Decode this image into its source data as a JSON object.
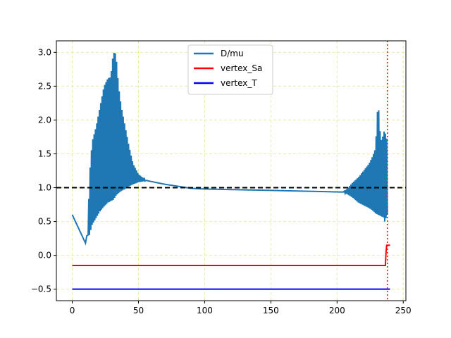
{
  "chart_data": {
    "type": "line",
    "title": "",
    "xlabel": "",
    "ylabel": "",
    "xlim": [
      -12,
      252
    ],
    "ylim": [
      -0.67,
      3.17
    ],
    "xticks": [
      0,
      50,
      100,
      150,
      200,
      250
    ],
    "xtick_labels": [
      "0",
      "50",
      "100",
      "150",
      "200",
      "250"
    ],
    "yticks": [
      -0.5,
      0.0,
      0.5,
      1.0,
      1.5,
      2.0,
      2.5,
      3.0
    ],
    "ytick_labels": [
      "−0.5",
      "0.0",
      "0.5",
      "1.0",
      "1.5",
      "2.0",
      "2.5",
      "3.0"
    ],
    "grid": true,
    "grid_color": "#e8eda0",
    "legend_position": "upper-center",
    "series": [
      {
        "name": "D/mu",
        "color": "#1f77b4",
        "envelope_upper": [
          [
            0,
            0.6
          ],
          [
            10,
            0.18
          ],
          [
            12,
            0.5
          ],
          [
            13,
            1.17
          ],
          [
            15,
            1.68
          ],
          [
            18,
            1.9
          ],
          [
            21,
            2.2
          ],
          [
            24,
            2.5
          ],
          [
            27,
            2.62
          ],
          [
            29,
            2.63
          ],
          [
            31,
            3.0
          ],
          [
            33,
            2.98
          ],
          [
            35,
            2.5
          ],
          [
            37,
            2.2
          ],
          [
            40,
            1.9
          ],
          [
            43,
            1.6
          ],
          [
            46,
            1.35
          ],
          [
            50,
            1.2
          ],
          [
            55,
            1.12
          ],
          [
            60,
            1.09
          ],
          [
            70,
            1.05
          ],
          [
            80,
            1.02
          ],
          [
            90,
            0.99
          ],
          [
            100,
            0.98
          ],
          [
            150,
            0.96
          ],
          [
            205,
            0.94
          ],
          [
            208,
            0.99
          ],
          [
            212,
            1.08
          ],
          [
            216,
            1.15
          ],
          [
            220,
            1.25
          ],
          [
            224,
            1.35
          ],
          [
            227,
            1.47
          ],
          [
            229,
            1.58
          ],
          [
            231,
            2.3
          ],
          [
            233,
            1.68
          ],
          [
            235,
            1.78
          ],
          [
            236,
            1.88
          ],
          [
            237,
            1.72
          ],
          [
            238,
            1.73
          ]
        ],
        "envelope_lower": [
          [
            0,
            0.6
          ],
          [
            10,
            0.18
          ],
          [
            12,
            0.3
          ],
          [
            13,
            0.3
          ],
          [
            15,
            0.45
          ],
          [
            18,
            0.55
          ],
          [
            21,
            0.65
          ],
          [
            24,
            0.72
          ],
          [
            27,
            0.78
          ],
          [
            29,
            0.8
          ],
          [
            31,
            0.82
          ],
          [
            33,
            0.88
          ],
          [
            35,
            0.92
          ],
          [
            37,
            0.95
          ],
          [
            40,
            0.98
          ],
          [
            43,
            1.02
          ],
          [
            46,
            1.05
          ],
          [
            50,
            1.08
          ],
          [
            55,
            1.1
          ],
          [
            60,
            1.09
          ],
          [
            70,
            1.05
          ],
          [
            80,
            1.02
          ],
          [
            90,
            0.99
          ],
          [
            100,
            0.98
          ],
          [
            150,
            0.96
          ],
          [
            205,
            0.93
          ],
          [
            208,
            0.9
          ],
          [
            212,
            0.85
          ],
          [
            216,
            0.78
          ],
          [
            220,
            0.74
          ],
          [
            224,
            0.7
          ],
          [
            227,
            0.66
          ],
          [
            229,
            0.62
          ],
          [
            231,
            0.6
          ],
          [
            233,
            0.58
          ],
          [
            235,
            0.56
          ],
          [
            236,
            0.5
          ],
          [
            237,
            0.55
          ],
          [
            238,
            0.6
          ]
        ],
        "oscillation_ranges": [
          [
            12,
            55
          ],
          [
            205,
            238
          ]
        ]
      },
      {
        "name": "vertex_Sa",
        "color": "#ff0000",
        "points": [
          [
            0,
            -0.15
          ],
          [
            236.5,
            -0.15
          ],
          [
            237,
            0.05
          ],
          [
            237.5,
            0.15
          ],
          [
            240,
            0.15
          ]
        ]
      },
      {
        "name": "vertex_T",
        "color": "#0000ff",
        "points": [
          [
            0,
            -0.5
          ],
          [
            240,
            -0.5
          ]
        ]
      }
    ],
    "reference_lines": [
      {
        "orientation": "horizontal",
        "value": 1.0,
        "color": "#000000",
        "style": "dashed"
      },
      {
        "orientation": "vertical",
        "value": 238,
        "color": "#ff0000",
        "style": "dotted"
      }
    ]
  }
}
